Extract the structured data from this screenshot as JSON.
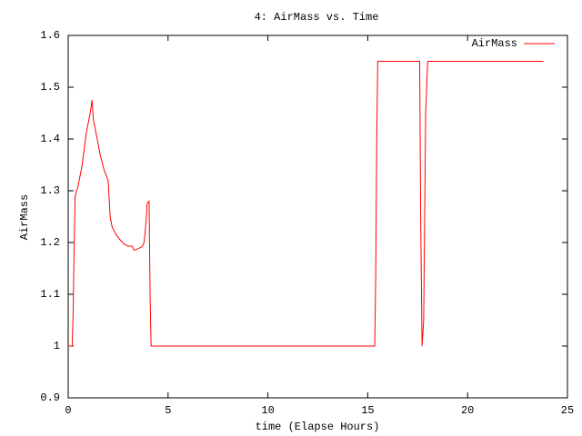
{
  "chart_data": {
    "type": "line",
    "title": "4: AirMass vs. Time",
    "x_label": "time (Elapse Hours)",
    "y_label": "AirMass",
    "x": [
      0,
      0.2,
      0.25,
      0.3,
      0.35,
      0.5,
      0.7,
      0.9,
      1.1,
      1.2,
      1.25,
      1.4,
      1.6,
      1.8,
      2.0,
      2.1,
      2.2,
      2.4,
      2.6,
      2.8,
      3.0,
      3.2,
      3.3,
      3.5,
      3.7,
      3.8,
      3.9,
      3.95,
      4.05,
      4.1,
      4.15,
      15.35,
      15.4,
      15.45,
      15.5,
      17.6,
      17.65,
      17.72,
      17.8,
      17.9,
      18.0,
      23.8
    ],
    "series": [
      {
        "name": "AirMass",
        "color": "#ff0000",
        "values": [
          1.0,
          1.0,
          1.07,
          1.2,
          1.29,
          1.31,
          1.35,
          1.41,
          1.45,
          1.475,
          1.44,
          1.41,
          1.37,
          1.34,
          1.32,
          1.25,
          1.23,
          1.215,
          1.205,
          1.197,
          1.193,
          1.193,
          1.185,
          1.188,
          1.192,
          1.2,
          1.24,
          1.275,
          1.28,
          1.1,
          1.0,
          1.0,
          1.14,
          1.4,
          1.55,
          1.55,
          1.25,
          1.0,
          1.05,
          1.45,
          1.55,
          1.55
        ]
      }
    ],
    "xlim": [
      0,
      25
    ],
    "xticks": [
      0,
      5,
      10,
      15,
      20,
      25
    ],
    "ylim": [
      0.9,
      1.6
    ],
    "yticks": [
      0.9,
      1,
      1.1,
      1.2,
      1.3,
      1.4,
      1.5,
      1.6
    ],
    "grid": false,
    "legend": "top-right"
  }
}
